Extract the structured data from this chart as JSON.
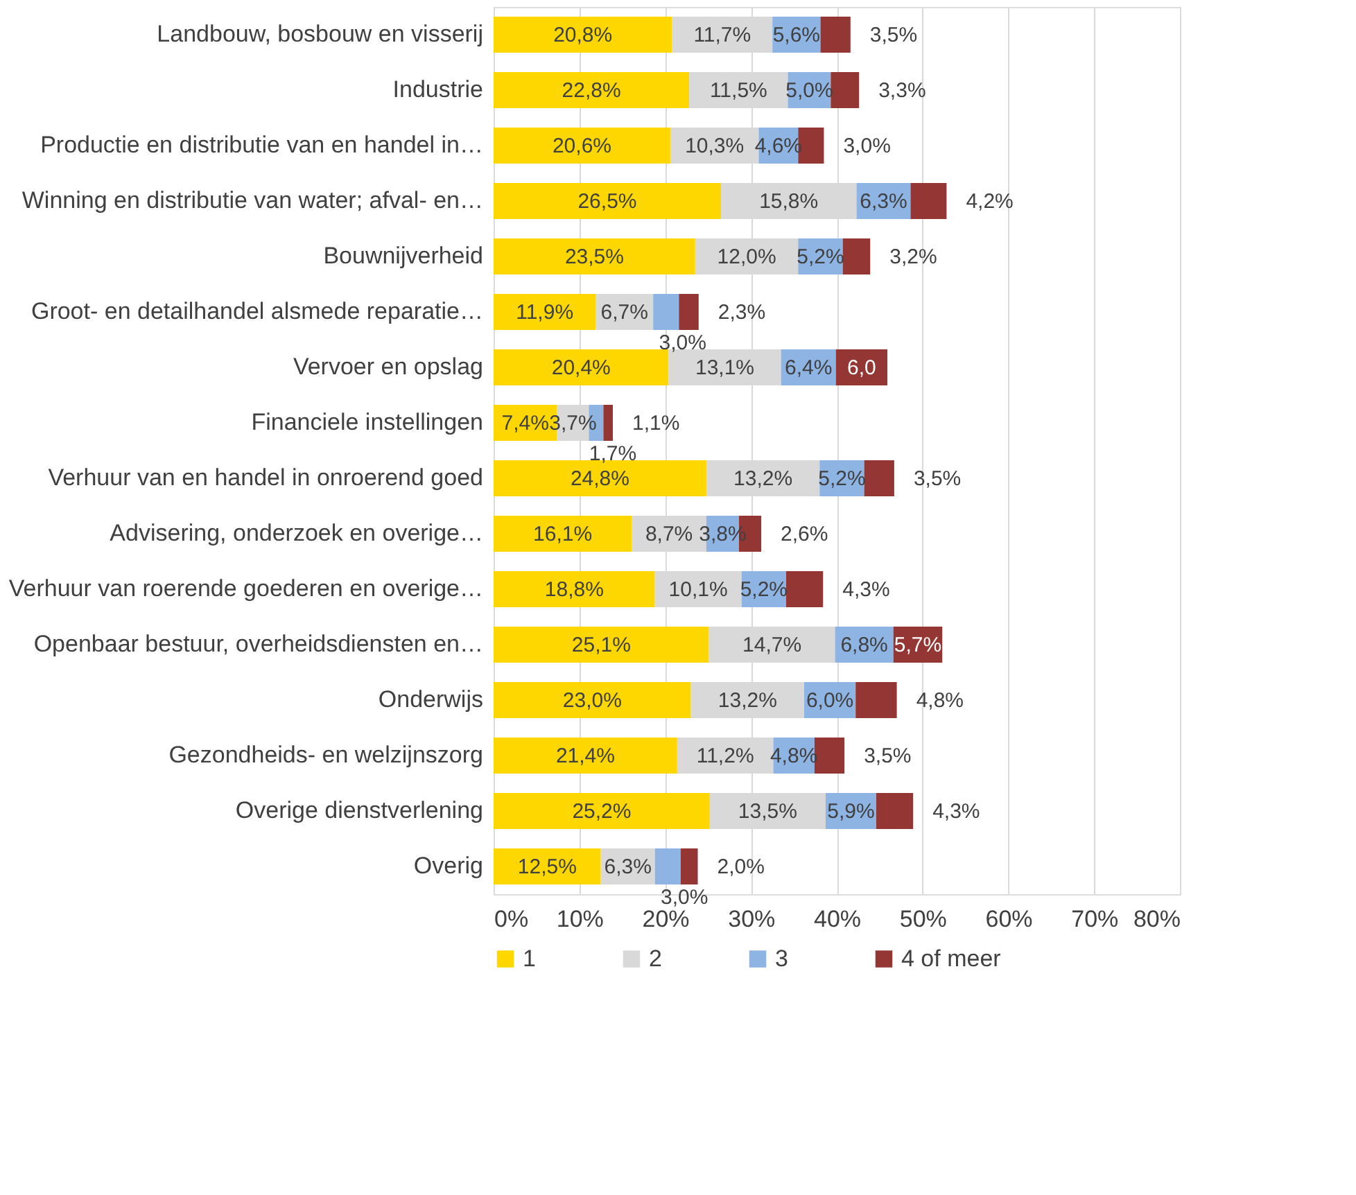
{
  "chart_data": {
    "type": "bar",
    "orientation": "horizontal",
    "stacked": true,
    "categories": [
      "Landbouw, bosbouw en visserij",
      "Industrie",
      "Productie en distributie van en handel in…",
      "Winning en distributie van water; afval- en…",
      "Bouwnijverheid",
      "Groot- en detailhandel alsmede reparatie…",
      "Vervoer en opslag",
      "Financiele instellingen",
      "Verhuur van en handel in onroerend goed",
      "Advisering, onderzoek en overige…",
      "Verhuur van roerende goederen en overige…",
      "Openbaar bestuur, overheidsdiensten en…",
      "Onderwijs",
      "Gezondheids- en welzijnszorg",
      "Overige dienstverlening",
      "Overig"
    ],
    "series": [
      {
        "name": "1",
        "color": "#ffd700",
        "values": [
          20.8,
          22.8,
          20.6,
          26.5,
          23.5,
          11.9,
          20.4,
          7.4,
          24.8,
          16.1,
          18.8,
          25.1,
          23.0,
          21.4,
          25.2,
          12.5
        ],
        "value_labels": [
          "20,8%",
          "22,8%",
          "20,6%",
          "26,5%",
          "23,5%",
          "11,9%",
          "20,4%",
          "7,4%",
          "24,8%",
          "16,1%",
          "18,8%",
          "25,1%",
          "23,0%",
          "21,4%",
          "25,2%",
          "12,5%"
        ]
      },
      {
        "name": "2",
        "color": "#d9d9d9",
        "values": [
          11.7,
          11.5,
          10.3,
          15.8,
          12.0,
          6.7,
          13.1,
          3.7,
          13.2,
          8.7,
          10.1,
          14.7,
          13.2,
          11.2,
          13.5,
          6.3
        ],
        "value_labels": [
          "11,7%",
          "11,5%",
          "10,3%",
          "15,8%",
          "12,0%",
          "6,7%",
          "13,1%",
          "3,7%",
          "13,2%",
          "8,7%",
          "10,1%",
          "14,7%",
          "13,2%",
          "11,2%",
          "13,5%",
          "6,3%"
        ]
      },
      {
        "name": "3",
        "color": "#8eb4e3",
        "values": [
          5.6,
          5.0,
          4.6,
          6.3,
          5.2,
          3.0,
          6.4,
          1.7,
          5.2,
          3.8,
          5.2,
          6.8,
          6.0,
          4.8,
          5.9,
          3.0
        ],
        "value_labels": [
          "5,6%",
          "5,0%",
          "4,6%",
          "6,3%",
          "5,2%",
          "3,0%",
          "6,4%",
          "1,7%",
          "5,2%",
          "3,8%",
          "5,2%",
          "6,8%",
          "6,0%",
          "4,8%",
          "5,9%",
          "3,0%"
        ]
      },
      {
        "name": "4 of meer",
        "color": "#943634",
        "values": [
          3.5,
          3.3,
          3.0,
          4.2,
          3.2,
          2.3,
          6.0,
          1.1,
          3.5,
          2.6,
          4.3,
          5.7,
          4.8,
          3.5,
          4.3,
          2.0
        ],
        "value_labels": [
          "3,5%",
          "3,3%",
          "3,0%",
          "4,2%",
          "3,2%",
          "2,3%",
          "6,0",
          "1,1%",
          "3,5%",
          "2,6%",
          "4,3%",
          "5,7%",
          "4,8%",
          "3,5%",
          "4,3%",
          "2,0%"
        ]
      }
    ],
    "xlim": [
      0,
      80
    ],
    "xticks": [
      {
        "value": 0,
        "label": "0%"
      },
      {
        "value": 10,
        "label": "10%"
      },
      {
        "value": 20,
        "label": "20%"
      },
      {
        "value": 30,
        "label": "30%"
      },
      {
        "value": 40,
        "label": "40%"
      },
      {
        "value": 50,
        "label": "50%"
      },
      {
        "value": 60,
        "label": "60%"
      },
      {
        "value": 70,
        "label": "70%"
      },
      {
        "value": 80,
        "label": "80%"
      }
    ],
    "grid": "x",
    "legend": "bottom"
  }
}
